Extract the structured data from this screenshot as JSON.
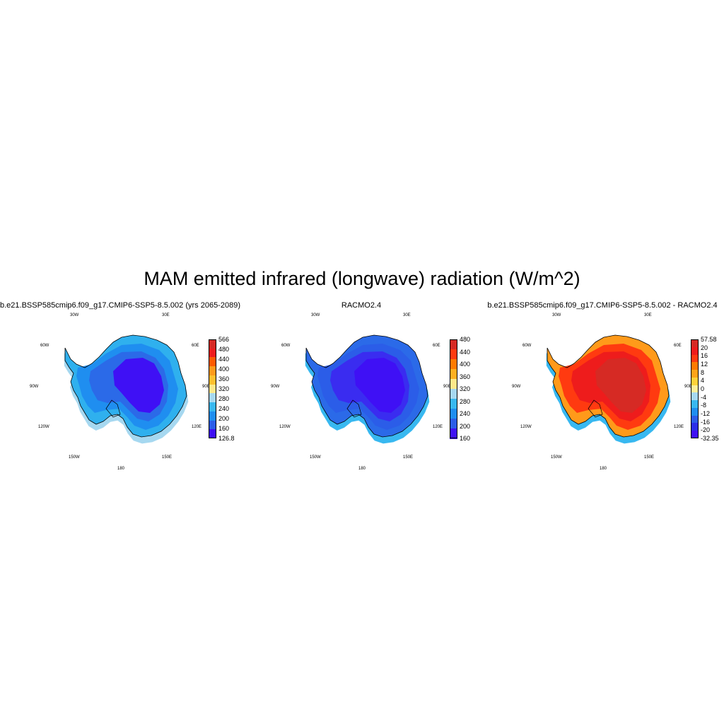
{
  "title": "MAM emitted infrared (longwave) radiation (W/m^2)",
  "panels": [
    {
      "title": "b.e21.BSSP585cmip6.f09_g17.CMIP6-SSP5-8.5.002 (yrs 2065-2089)",
      "lon_labels": {
        "w30": "30W",
        "e30": "30E",
        "w60": "60W",
        "e60": "60E",
        "w90": "90W",
        "e90": "90E",
        "w120": "120W",
        "e120": "120E",
        "w150": "150W",
        "e150": "150E",
        "s180": "180"
      },
      "colorbar": {
        "labels": [
          "566",
          "480",
          "440",
          "400",
          "360",
          "320",
          "280",
          "240",
          "200",
          "160",
          "126.8"
        ],
        "colors": [
          "#d62a24",
          "#ee1c1c",
          "#ff5a00",
          "#ff9a1a",
          "#ffc02e",
          "#ffe88a",
          "#a6d8f0",
          "#38b8f0",
          "#1f8ef0",
          "#2b5de8",
          "#3f10f5"
        ]
      },
      "field": {
        "outer": "#2fb0ee",
        "ring": "#1f8ef0",
        "mid": "#2b6ae8",
        "core": "#3f10f5",
        "ocean_fringe": "#a6d8f0"
      }
    },
    {
      "title": "RACMO2.4",
      "lon_labels": {
        "w30": "30W",
        "e30": "30E",
        "w60": "60W",
        "e60": "60E",
        "w90": "90W",
        "e90": "90E",
        "w120": "120W",
        "e120": "120E",
        "w150": "150W",
        "e150": "150E",
        "s180": "180"
      },
      "colorbar": {
        "labels": [
          "480",
          "440",
          "400",
          "360",
          "320",
          "280",
          "240",
          "200",
          "160"
        ],
        "colors": [
          "#d62a24",
          "#ff3a10",
          "#ff7a00",
          "#ffb020",
          "#ffe88a",
          "#a6d8f0",
          "#38b8f0",
          "#1f8ef0",
          "#2b5de8",
          "#3f10f5"
        ]
      },
      "field": {
        "outer": "#2b6ae8",
        "ring": "#2b5de8",
        "mid": "#3a2cf0",
        "core": "#3f10f5",
        "ocean_fringe": "#38b8f0"
      }
    },
    {
      "title": "b.e21.BSSP585cmip6.f09_g17.CMIP6-SSP5-8.5.002 - RACMO2.4",
      "lon_labels": {
        "w30": "30W",
        "e30": "30E",
        "w60": "60W",
        "e60": "60E",
        "w90": "90W",
        "e90": "90E",
        "w120": "120W",
        "e120": "120E",
        "w150": "150W",
        "e150": "150E",
        "s180": "180"
      },
      "colorbar": {
        "labels": [
          "57.58",
          "20",
          "16",
          "12",
          "8",
          "4",
          "0",
          "-4",
          "-8",
          "-12",
          "-16",
          "-20",
          "-32.35"
        ],
        "colors": [
          "#d62a24",
          "#ee1c1c",
          "#ff3a10",
          "#ff7a00",
          "#ffa41a",
          "#ffd23a",
          "#ffef9a",
          "#a6d8f0",
          "#38b8f0",
          "#1f8ef0",
          "#2b5de8",
          "#2b2ee8",
          "#3f10f5"
        ]
      },
      "field": {
        "outer": "#ff9a1a",
        "ring": "#ff3a10",
        "mid": "#ee1c1c",
        "core": "#d62a24",
        "ocean_fringe": "#38b8f0"
      }
    }
  ]
}
